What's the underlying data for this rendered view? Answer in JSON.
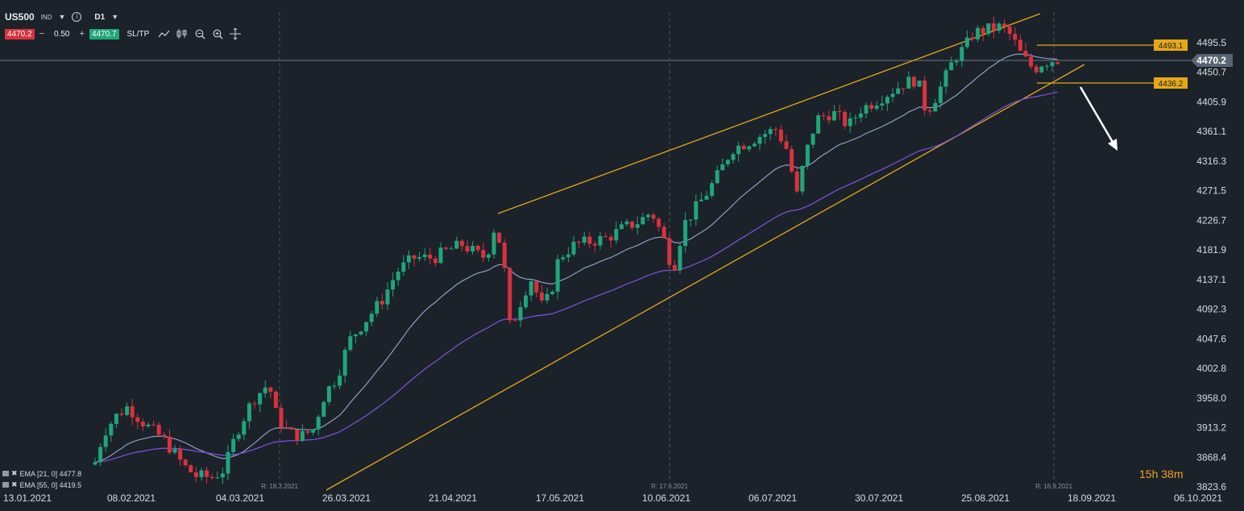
{
  "toolbar": {
    "symbol": "US500",
    "market": "IND",
    "timeframe": "D1",
    "sell_price": "4470.2",
    "volume": "0.50",
    "buy_price": "4470.7",
    "minus": "−",
    "plus": "+",
    "sltp_label": "SL/TP"
  },
  "price_axis": {
    "ticks": [
      "4495.5",
      "4450.7",
      "4405.9",
      "4361.1",
      "4316.3",
      "4271.5",
      "4226.7",
      "4181.9",
      "4137.1",
      "4092.3",
      "4047.6",
      "4002.8",
      "3958.0",
      "3913.2",
      "3868.4",
      "3823.6"
    ],
    "current_price": "4470.2",
    "level_upper": "4493.1",
    "level_lower": "4436.2"
  },
  "date_axis": {
    "labels": [
      "13.01.2021",
      "08.02.2021",
      "04.03.2021",
      "26.03.2021",
      "21.04.2021",
      "17.05.2021",
      "10.06.2021",
      "06.07.2021",
      "30.07.2021",
      "25.08.2021",
      "18.09.2021",
      "06.10.2021"
    ]
  },
  "rollover_markers": [
    "R: 18.3.2021",
    "R: 17.6.2021",
    "R: 16.9.2021"
  ],
  "indicators": [
    {
      "label": "EMA [21, 0] 4477.8",
      "color": "#8e9ec3"
    },
    {
      "label": "EMA [55, 0] 4419.5",
      "color": "#7a4fd1"
    }
  ],
  "countdown": {
    "hours": "15",
    "hours_unit": "h",
    "minutes": "38",
    "minutes_unit": "m"
  },
  "colors": {
    "background": "#1b222a",
    "bull": "#1fa67a",
    "bear": "#d9323e",
    "channel": "#e6a817",
    "ema21": "#8e9ec3",
    "ema55": "#7a4fd1",
    "current_line": "#6b7886"
  },
  "icons": [
    "caret-down-icon",
    "info-icon",
    "line-chart-icon",
    "candles-icon",
    "zoom-out-icon",
    "zoom-in-icon",
    "crosshair-icon",
    "trend-arrow-icon"
  ]
}
